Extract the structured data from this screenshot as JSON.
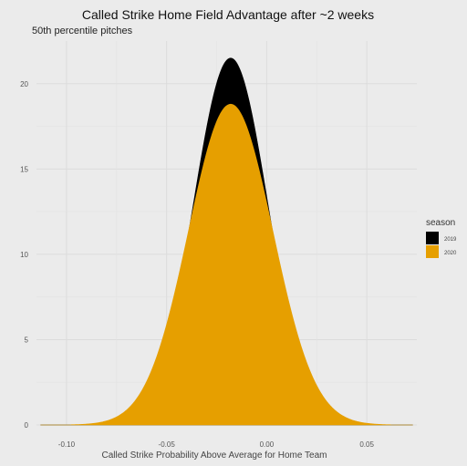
{
  "chart_data": {
    "type": "area",
    "title": "Called Strike Home Field Advantage after ~2 weeks",
    "subtitle": "50th percentile pitches",
    "xlabel": "Called Strike Probability Above Average for Home Team",
    "ylabel": "",
    "xlim": [
      -0.115,
      0.075
    ],
    "ylim": [
      0,
      22.5
    ],
    "x_ticks": [
      -0.1,
      -0.05,
      0.0,
      0.05
    ],
    "x_tick_labels": [
      "-0.10",
      "-0.05",
      "0.00",
      "0.05"
    ],
    "y_ticks": [
      0,
      5,
      10,
      15,
      20
    ],
    "y_tick_labels": [
      "0",
      "5",
      "10",
      "15",
      "20"
    ],
    "grid": true,
    "legend": {
      "title": "season",
      "position": "right"
    },
    "series": [
      {
        "name": "2019",
        "color": "#000000",
        "peak_x": -0.018,
        "peak_y": 21.5,
        "sd": 0.0185,
        "x_min": -0.098,
        "x_max": 0.062
      },
      {
        "name": "2020",
        "color": "#e69f00",
        "peak_x": -0.018,
        "peak_y": 18.8,
        "sd": 0.021,
        "x_min": -0.098,
        "x_max": 0.062
      }
    ]
  }
}
